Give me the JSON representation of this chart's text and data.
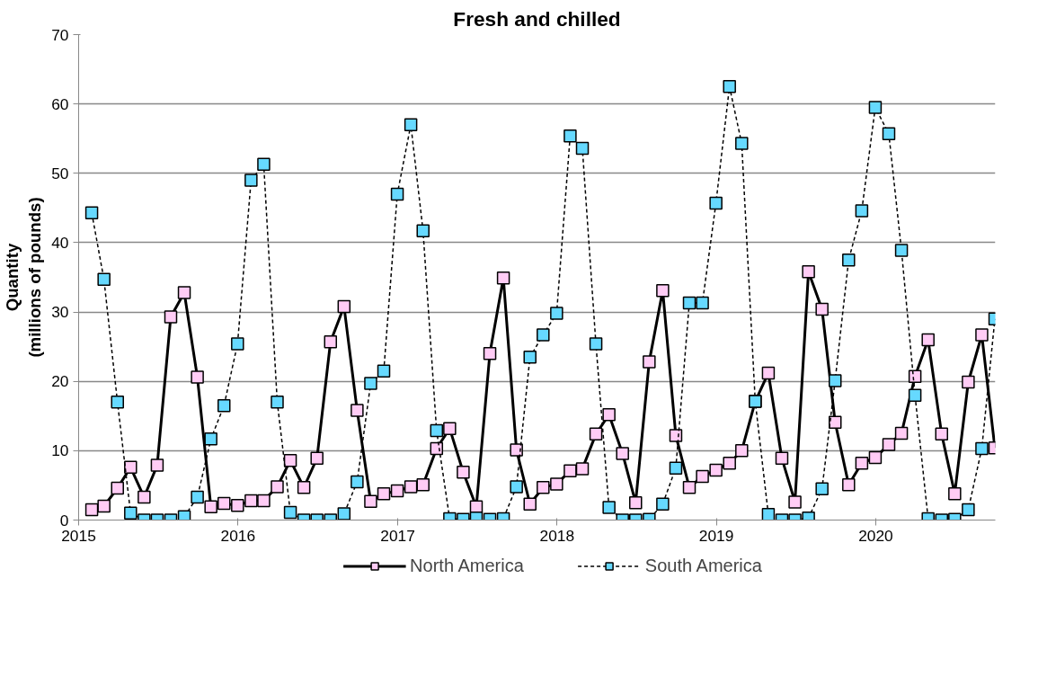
{
  "chart_data": {
    "type": "line",
    "title": "Fresh and chilled",
    "ylabel": "Quantity\n(millions of pounds)",
    "x": [
      "2015-01-31",
      "2015-02-28",
      "2015-03-31",
      "2015-04-30",
      "2015-05-31",
      "2015-06-30",
      "2015-07-31",
      "2015-08-31",
      "2015-09-30",
      "2015-10-31",
      "2015-11-30",
      "2015-12-31",
      "2016-01-31",
      "2016-02-29",
      "2016-03-31",
      "2016-04-30",
      "2016-05-31",
      "2016-06-30",
      "2016-07-31",
      "2016-08-31",
      "2016-09-30",
      "2016-10-31",
      "2016-11-30",
      "2016-12-31",
      "2017-01-31",
      "2017-02-28",
      "2017-03-31",
      "2017-04-30",
      "2017-05-31",
      "2017-06-30",
      "2017-07-31",
      "2017-08-31",
      "2017-09-30",
      "2017-10-31",
      "2017-11-30",
      "2017-12-31",
      "2018-01-31",
      "2018-02-28",
      "2018-03-31",
      "2018-04-30",
      "2018-05-31",
      "2018-06-30",
      "2018-07-31",
      "2018-08-31",
      "2018-09-30",
      "2018-10-31",
      "2018-11-30",
      "2018-12-31",
      "2019-01-31",
      "2019-02-28",
      "2019-03-31",
      "2019-04-30",
      "2019-05-31",
      "2019-06-30",
      "2019-07-31",
      "2019-08-31",
      "2019-09-30",
      "2019-10-31",
      "2019-11-30",
      "2019-12-31",
      "2020-01-31",
      "2020-02-29",
      "2020-03-31",
      "2020-04-30",
      "2020-05-31",
      "2020-06-30",
      "2020-07-31",
      "2020-08-31",
      "2020-09-30"
    ],
    "series": [
      {
        "name": "North America",
        "color": "#ffccf5",
        "line_style": "solid",
        "values": [
          1.5,
          2.0,
          4.6,
          7.6,
          3.3,
          7.9,
          29.3,
          32.8,
          20.6,
          1.9,
          2.4,
          2.1,
          2.8,
          2.8,
          4.8,
          8.6,
          4.7,
          8.9,
          25.7,
          30.8,
          15.8,
          2.7,
          3.8,
          4.2,
          4.8,
          5.1,
          10.3,
          13.2,
          6.9,
          1.9,
          24.0,
          34.9,
          10.1,
          2.3,
          4.7,
          5.2,
          7.1,
          7.4,
          12.4,
          15.2,
          9.6,
          2.5,
          22.8,
          33.1,
          12.2,
          4.7,
          6.3,
          7.2,
          8.2,
          10.0,
          17.1,
          21.2,
          8.9,
          2.6,
          35.8,
          30.4,
          14.1,
          5.1,
          8.2,
          9.0,
          10.9,
          12.5,
          20.7,
          26.0,
          12.4,
          3.8,
          19.9,
          26.7,
          10.4
        ]
      },
      {
        "name": "South America",
        "color": "#66d9ff",
        "line_style": "dashed",
        "values": [
          44.3,
          34.7,
          17.0,
          1.0,
          0,
          0,
          0,
          0.5,
          3.3,
          11.7,
          16.5,
          25.4,
          49.0,
          51.3,
          17.0,
          1.1,
          0,
          0,
          0,
          0.9,
          5.5,
          19.7,
          21.5,
          47.0,
          57.0,
          41.7,
          12.9,
          0.2,
          0.1,
          0.3,
          0.1,
          0.2,
          4.8,
          23.5,
          26.7,
          29.8,
          55.4,
          53.6,
          25.4,
          1.8,
          0,
          0,
          0.1,
          2.3,
          7.5,
          31.3,
          31.3,
          45.7,
          62.5,
          54.3,
          17.1,
          0.8,
          0,
          0,
          0.3,
          4.5,
          20.1,
          37.5,
          44.6,
          59.5,
          55.7,
          38.9,
          18.0,
          0.2,
          0,
          0.1,
          1.5,
          10.3,
          29.0
        ]
      }
    ],
    "xlim": [
      "2015-01-01",
      "2020-10-01"
    ],
    "xticks": [
      {
        "value": "2015-01-01",
        "label": "2015"
      },
      {
        "value": "2016-01-01",
        "label": "2016"
      },
      {
        "value": "2017-01-01",
        "label": "2017"
      },
      {
        "value": "2018-01-01",
        "label": "2018"
      },
      {
        "value": "2019-01-01",
        "label": "2019"
      },
      {
        "value": "2020-01-01",
        "label": "2020"
      }
    ],
    "ylim": [
      0,
      70
    ],
    "yticks": [
      0,
      10,
      20,
      30,
      40,
      50,
      60,
      70
    ],
    "grid": "y",
    "legend": "bottom",
    "marker": "square"
  }
}
